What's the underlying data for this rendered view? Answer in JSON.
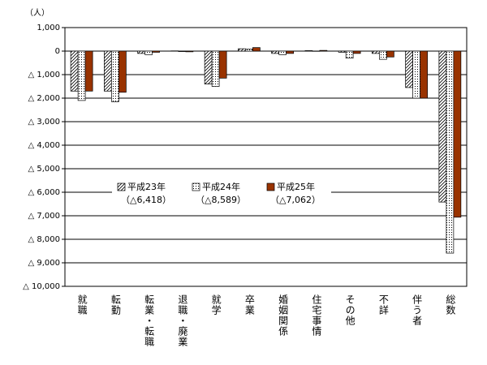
{
  "chart_data": {
    "type": "bar",
    "unit_label": "（人）",
    "categories": [
      "就職",
      "転勤",
      "転業・転職",
      "退職・廃業",
      "就学",
      "卒業",
      "婚姻関係",
      "住宅事情",
      "その他",
      "不詳",
      "伴う者",
      "総数"
    ],
    "series": [
      {
        "name": "平成23年",
        "note": "（△6,418）",
        "color": "#ffffff",
        "pattern": "hatch",
        "values": [
          -1700,
          -1700,
          -100,
          10,
          -1400,
          100,
          -100,
          20,
          -50,
          -100,
          -1550,
          -6418
        ]
      },
      {
        "name": "平成24年",
        "note": "（△8,589）",
        "color": "#ffffff",
        "pattern": "dots",
        "values": [
          -2100,
          -2150,
          -150,
          -20,
          -1500,
          80,
          -150,
          -10,
          -300,
          -350,
          -2000,
          -8589
        ]
      },
      {
        "name": "平成25年",
        "note": "（△7,062）",
        "color": "#993300",
        "pattern": null,
        "values": [
          -1700,
          -1750,
          -50,
          -30,
          -1150,
          150,
          -100,
          30,
          -100,
          -250,
          -2000,
          -7062
        ]
      }
    ],
    "ylim": [
      -10000,
      1000
    ],
    "yticks": [
      {
        "value": 1000,
        "label": "1,000"
      },
      0,
      {
        "value": -1000,
        "label": "△ 1,000"
      },
      {
        "value": -2000,
        "label": "△ 2,000"
      },
      {
        "value": -3000,
        "label": "△ 3,000"
      },
      {
        "value": -4000,
        "label": "△ 4,000"
      },
      {
        "value": -5000,
        "label": "△ 5,000"
      },
      {
        "value": -6000,
        "label": "△ 6,000"
      },
      {
        "value": -7000,
        "label": "△ 7,000"
      },
      {
        "value": -8000,
        "label": "△ 8,000"
      },
      {
        "value": -9000,
        "label": "△ 9,000"
      },
      {
        "value": -10000,
        "label": "△ 10,000"
      }
    ],
    "grid": true
  }
}
